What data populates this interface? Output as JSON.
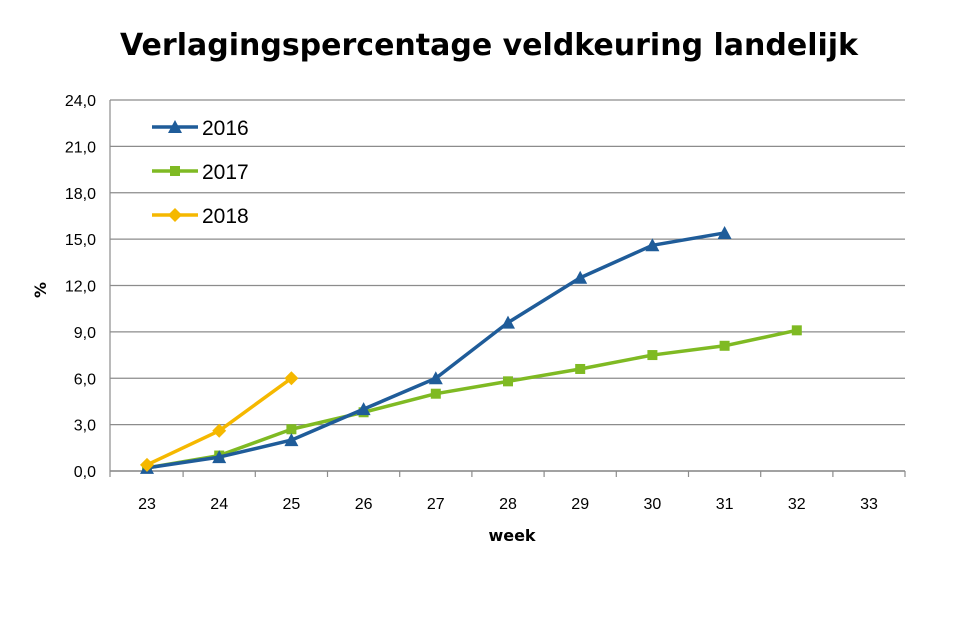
{
  "chart_data": {
    "type": "line",
    "title": "Verlagingspercentage veldkeuring landelijk",
    "xlabel": "week",
    "ylabel": "%",
    "x_ticks": [
      "23",
      "24",
      "25",
      "26",
      "27",
      "28",
      "29",
      "30",
      "31",
      "32",
      "33"
    ],
    "xlim": [
      23,
      33
    ],
    "y_ticks": [
      "0,0",
      "3,0",
      "6,0",
      "9,0",
      "12,0",
      "15,0",
      "18,0",
      "21,0",
      "24,0"
    ],
    "ylim": [
      0,
      24
    ],
    "grid": "horizontal",
    "legend_position": "top-left",
    "series": [
      {
        "name": "2016",
        "color": "#1f5c99",
        "marker": "triangle",
        "x": [
          23,
          24,
          25,
          26,
          27,
          28,
          29,
          30,
          31
        ],
        "values": [
          0.2,
          0.9,
          2.0,
          4.0,
          6.0,
          9.6,
          12.5,
          14.6,
          15.4
        ]
      },
      {
        "name": "2017",
        "color": "#7fba23",
        "marker": "square",
        "x": [
          23,
          24,
          25,
          26,
          27,
          28,
          29,
          30,
          31,
          32
        ],
        "values": [
          0.2,
          1.0,
          2.7,
          3.8,
          5.0,
          5.8,
          6.6,
          7.5,
          8.1,
          9.1
        ]
      },
      {
        "name": "2018",
        "color": "#f5b800",
        "marker": "diamond",
        "x": [
          23,
          24,
          25
        ],
        "values": [
          0.4,
          2.6,
          6.0
        ]
      }
    ]
  }
}
